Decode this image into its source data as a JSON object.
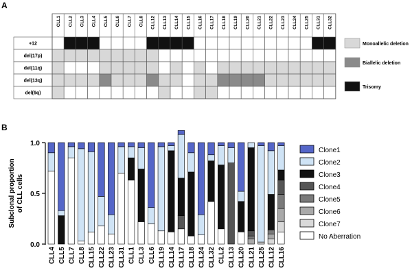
{
  "colors": {
    "none": "#ffffff",
    "mono": "#d8d8d8",
    "bi": "#8a8a8a",
    "tri": "#111111",
    "grid": "#555555",
    "clone1": "#5566c8",
    "clone2": "#cfe3f5",
    "clone3": "#111111",
    "clone4": "#555555",
    "clone5": "#7a7a7a",
    "clone6": "#a9a9a9",
    "clone7": "#d9d9d9",
    "noab": "#ffffff"
  },
  "panelA": {
    "label": "A",
    "columns": [
      "CLL1",
      "CLL2",
      "CLL3",
      "CLL4",
      "CLL5",
      "CLL6",
      "CLL7",
      "CLL8",
      "CLL12",
      "CLL13",
      "CLL14",
      "CLL15",
      "CLL16",
      "CLL17",
      "CLL18",
      "CLL19",
      "CLL20",
      "CLL21",
      "CLL22",
      "CLL23",
      "CLL24",
      "CLL25",
      "CLL31",
      "CLL32"
    ],
    "rows": [
      {
        "label": "+12",
        "cells": [
          0,
          3,
          3,
          3,
          0,
          0,
          0,
          0,
          3,
          3,
          3,
          3,
          0,
          0,
          0,
          0,
          0,
          0,
          0,
          0,
          0,
          0,
          3,
          3
        ]
      },
      {
        "label": "del(17p)",
        "cells": [
          1,
          1,
          1,
          1,
          1,
          1,
          1,
          1,
          1,
          0,
          0,
          0,
          0,
          0,
          0,
          0,
          0,
          0,
          0,
          0,
          0,
          0,
          0,
          0
        ]
      },
      {
        "label": "del(11q)",
        "cells": [
          1,
          0,
          0,
          0,
          1,
          1,
          1,
          1,
          1,
          0,
          1,
          0,
          1,
          0,
          1,
          1,
          1,
          1,
          1,
          1,
          1,
          1,
          1,
          1
        ]
      },
      {
        "label": "del(13q)",
        "cells": [
          1,
          1,
          1,
          1,
          2,
          1,
          1,
          1,
          2,
          1,
          1,
          0,
          1,
          1,
          2,
          2,
          2,
          2,
          1,
          1,
          1,
          1,
          1,
          1
        ]
      },
      {
        "label": "del(6q)",
        "cells": [
          1,
          0,
          0,
          0,
          0,
          0,
          0,
          0,
          0,
          1,
          0,
          0,
          1,
          1,
          0,
          0,
          0,
          0,
          0,
          0,
          0,
          0,
          0,
          0
        ]
      }
    ],
    "legend": [
      {
        "label": "Monoallelic deletion",
        "color_key": "mono"
      },
      {
        "label": "Biallelic deletion",
        "color_key": "bi"
      },
      {
        "label": "Trisomy",
        "color_key": "tri"
      }
    ]
  },
  "panelB": {
    "label": "B"
  },
  "chart_data": {
    "type": "bar",
    "stacked": true,
    "title": "",
    "xlabel": "",
    "ylabel": "Subclonal proportion of CLL cells",
    "ylim": [
      0,
      1.0
    ],
    "yticks": [
      "0.0",
      "0.5",
      "1.0"
    ],
    "categories": [
      "CLL4",
      "CLL5",
      "CLL7",
      "CLL8",
      "CLL15",
      "CLL22",
      "CLL23",
      "CLL31",
      "CLL1",
      "CLL3",
      "CLL6",
      "CLL19",
      "CLL14",
      "CLL17",
      "CLL18",
      "CLL24",
      "CLL32",
      "CLL2",
      "CLL13",
      "CLL20",
      "CLL21",
      "CLL25",
      "CLL12",
      "CLL16"
    ],
    "series": [
      {
        "name": "No Aberration",
        "color_key": "noab",
        "values": [
          0.72,
          0.0,
          0.85,
          0.03,
          0.12,
          0.18,
          0.1,
          0.7,
          0.63,
          0.22,
          0.2,
          0.13,
          0.12,
          0.15,
          0.08,
          0.09,
          0.42,
          0.15,
          0.0,
          0.12,
          0.0,
          0.0,
          0.0,
          0.12
        ]
      },
      {
        "name": "Clone7",
        "color_key": "clone7",
        "values": [
          0,
          0,
          0,
          0,
          0,
          0,
          0,
          0,
          0,
          0,
          0,
          0,
          0,
          0,
          0,
          0,
          0,
          0,
          0,
          0,
          0,
          0.02,
          0.05,
          0.1
        ]
      },
      {
        "name": "Clone6",
        "color_key": "clone6",
        "values": [
          0,
          0,
          0,
          0,
          0,
          0,
          0,
          0,
          0,
          0,
          0,
          0,
          0,
          0,
          0,
          0,
          0,
          0,
          0,
          0,
          0.05,
          0.0,
          0.05,
          0.13
        ]
      },
      {
        "name": "Clone5",
        "color_key": "clone5",
        "values": [
          0,
          0,
          0,
          0,
          0,
          0,
          0,
          0,
          0,
          0,
          0,
          0,
          0,
          0,
          0,
          0,
          0,
          0,
          0,
          0,
          0.03,
          0.0,
          0.04,
          0.14
        ]
      },
      {
        "name": "Clone4",
        "color_key": "clone4",
        "values": [
          0,
          0,
          0,
          0,
          0,
          0,
          0,
          0,
          0,
          0,
          0,
          0,
          0,
          0.13,
          0,
          0,
          0,
          0,
          0.8,
          0,
          0.05,
          0,
          0,
          0.14
        ]
      },
      {
        "name": "Clone3",
        "color_key": "clone3",
        "values": [
          0,
          0.28,
          0,
          0,
          0,
          0,
          0,
          0,
          0.22,
          0.52,
          0,
          0,
          0.8,
          0.37,
          0.63,
          0.0,
          0.4,
          0.63,
          0.0,
          0.3,
          0.82,
          0.0,
          0.35,
          0.1
        ]
      },
      {
        "name": "Clone2",
        "color_key": "clone2",
        "values": [
          0.18,
          0.05,
          0.11,
          0.91,
          0.79,
          0.29,
          0.19,
          0.26,
          0.11,
          0.21,
          0.16,
          0.83,
          0.05,
          0.43,
          0.19,
          0.2,
          0.06,
          0.19,
          0.15,
          0.1,
          0.05,
          0.95,
          0.43,
          0.24
        ]
      },
      {
        "name": "Clone1",
        "color_key": "clone1",
        "values": [
          0.1,
          0.67,
          0.04,
          0.06,
          0.09,
          0.53,
          0.71,
          0.04,
          0.04,
          0.05,
          0.64,
          0.04,
          0.03,
          0.04,
          0.1,
          0.71,
          0.12,
          0.03,
          0.05,
          0.48,
          0.0,
          0.03,
          0.08,
          0.03
        ]
      }
    ],
    "legend": {
      "placement": "right",
      "entries": [
        {
          "label": "Clone1",
          "color_key": "clone1"
        },
        {
          "label": "Clone2",
          "color_key": "clone2"
        },
        {
          "label": "Clone3",
          "color_key": "clone3"
        },
        {
          "label": "Clone4",
          "color_key": "clone4"
        },
        {
          "label": "Clone5",
          "color_key": "clone5"
        },
        {
          "label": "Clone6",
          "color_key": "clone6"
        },
        {
          "label": "Clone7",
          "color_key": "clone7"
        },
        {
          "label": "No Aberration",
          "color_key": "noab"
        }
      ]
    }
  }
}
